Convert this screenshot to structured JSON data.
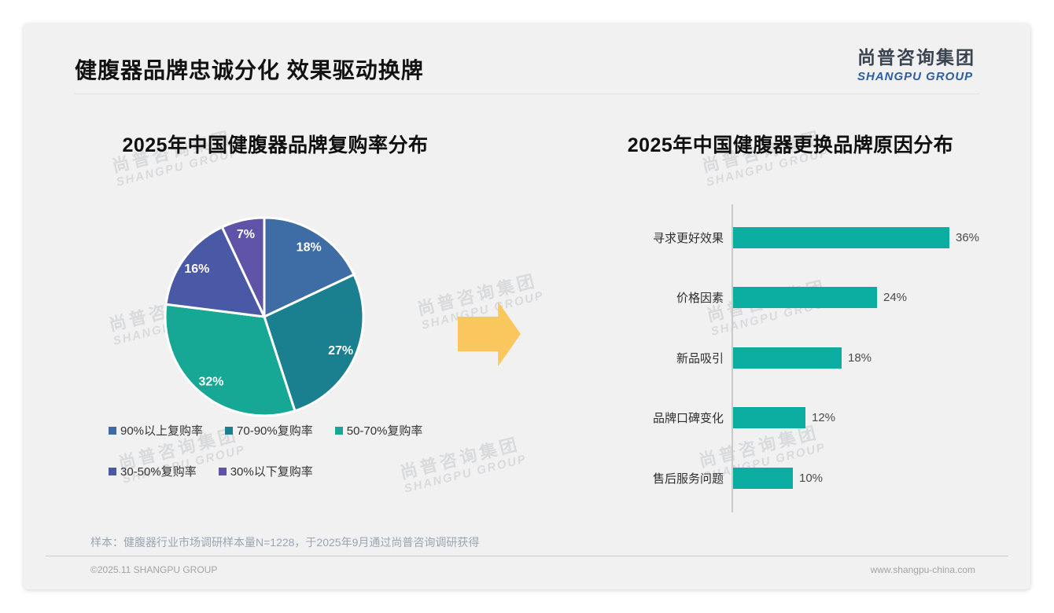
{
  "page": {
    "title": "健腹器品牌忠诚分化 效果驱动换牌",
    "logo": {
      "cn": "尚普咨询集团",
      "en": "SHANGPU GROUP"
    },
    "watermark": {
      "cn": "尚普咨询集团",
      "en": "SHANGPU GROUP"
    },
    "footnote": "样本：健腹器行业市场调研样本量N=1228，于2025年9月通过尚普咨询调研获得",
    "footer": {
      "copyright": "©2025.11 SHANGPU GROUP",
      "website": "www.shangpu-china.com"
    }
  },
  "accent": {
    "arrow_color": "#f9c75d",
    "card_bg": "#f1f1f2"
  },
  "chart_data": [
    {
      "type": "pie",
      "title": "2025年中国健腹器品牌复购率分布",
      "categories": [
        "90%以上复购率",
        "70-90%复购率",
        "50-70%复购率",
        "30-50%复购率",
        "30%以下复购率"
      ],
      "values": [
        18,
        27,
        32,
        16,
        7
      ],
      "labels": [
        "18%",
        "27%",
        "32%",
        "16%",
        "7%"
      ],
      "colors": [
        "#3e6da6",
        "#1a7f8e",
        "#16a795",
        "#4a59a5",
        "#5e53a6"
      ],
      "start_angle_deg": 0,
      "direction": "clockwise",
      "legend_position": "bottom",
      "label_color": "#ffffff"
    },
    {
      "type": "bar",
      "title": "2025年中国健腹器更换品牌原因分布",
      "orientation": "horizontal",
      "categories": [
        "寻求更好效果",
        "价格因素",
        "新品吸引",
        "品牌口碑变化",
        "售后服务问题"
      ],
      "values": [
        36,
        24,
        18,
        12,
        10
      ],
      "labels": [
        "36%",
        "24%",
        "18%",
        "12%",
        "10%"
      ],
      "bar_color": "#0cada1",
      "xlim": [
        0,
        38
      ],
      "grid": false,
      "axis_color": "#c9c9cb"
    }
  ]
}
